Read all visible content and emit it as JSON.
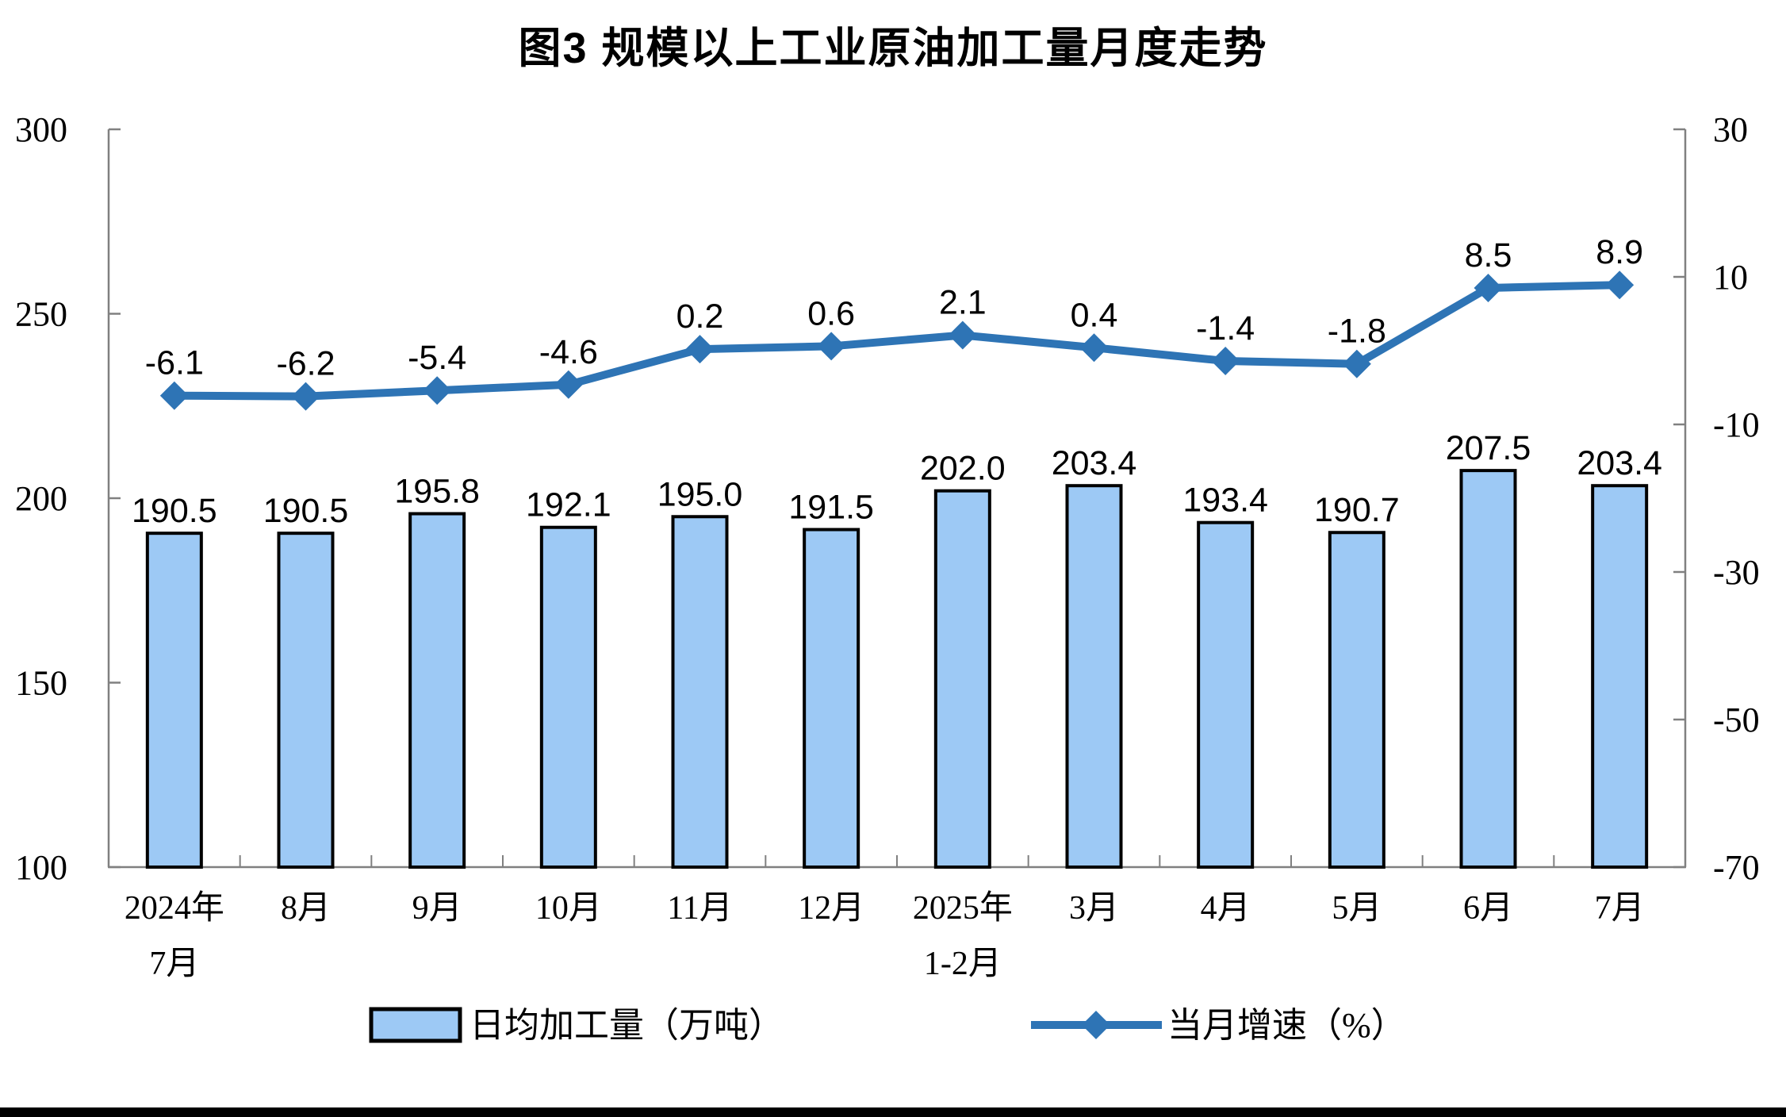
{
  "page": {
    "title": "图3 规模以上工业原油加工量月度走势"
  },
  "chart_data": {
    "type": "combo-bar-line",
    "title": "图3 规模以上工业原油加工量月度走势",
    "categories": [
      [
        "2024年",
        "7月"
      ],
      [
        "8月"
      ],
      [
        "9月"
      ],
      [
        "10月"
      ],
      [
        "11月"
      ],
      [
        "12月"
      ],
      [
        "2025年",
        "1-2月"
      ],
      [
        "3月"
      ],
      [
        "4月"
      ],
      [
        "5月"
      ],
      [
        "6月"
      ],
      [
        "7月"
      ]
    ],
    "series": [
      {
        "name": "日均加工量（万吨）",
        "type": "bar",
        "axis": "left",
        "color": "#9DC9F5",
        "border_color": "#000000",
        "values": [
          190.5,
          190.5,
          195.8,
          192.1,
          195.0,
          191.5,
          202.0,
          203.4,
          193.4,
          190.7,
          207.5,
          203.4
        ]
      },
      {
        "name": "当月增速（%）",
        "type": "line",
        "axis": "right",
        "color": "#2E74B5",
        "marker": "diamond",
        "values": [
          -6.1,
          -6.2,
          -5.4,
          -4.6,
          0.2,
          0.6,
          2.1,
          0.4,
          -1.4,
          -1.8,
          8.5,
          8.9
        ]
      }
    ],
    "axes": {
      "left": {
        "min": 100,
        "max": 300,
        "step": 50
      },
      "right": {
        "min": -70,
        "max": 30,
        "step": 20
      }
    },
    "grid": false,
    "legend_position": "bottom",
    "axis_color": "#808080",
    "text_color": "#000000"
  }
}
